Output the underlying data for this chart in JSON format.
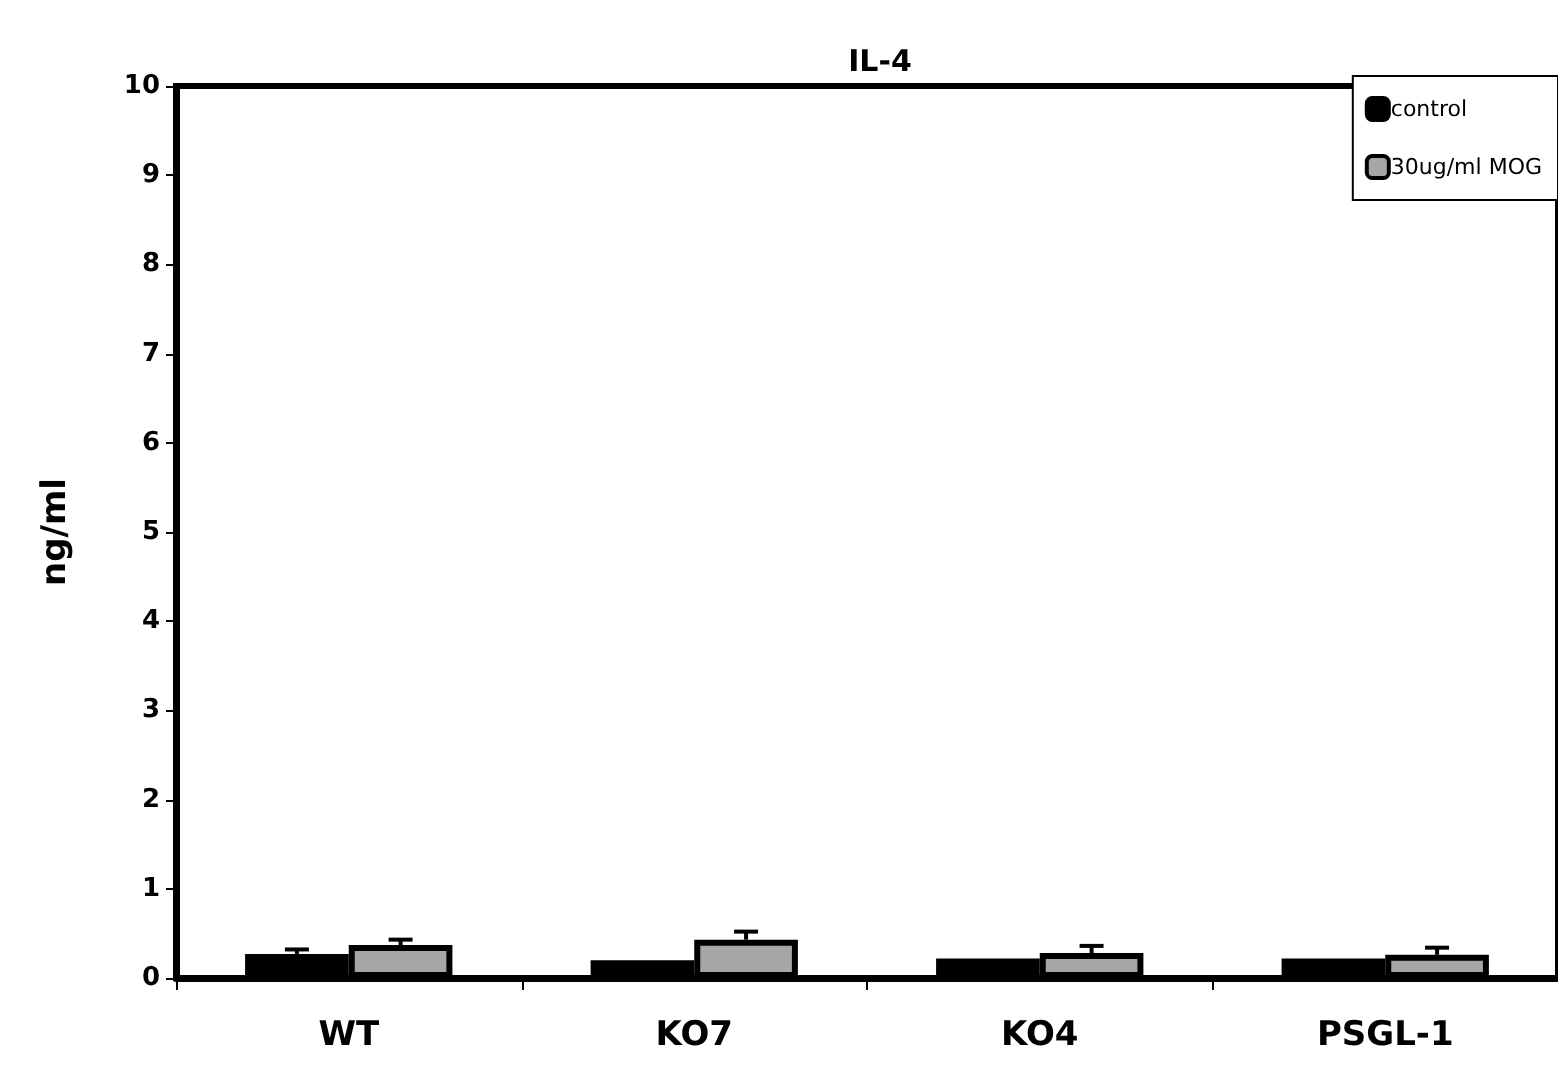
{
  "chart_data": {
    "type": "bar",
    "title": "IL-4",
    "ylabel": "ng/ml",
    "categories": [
      "WT",
      "KO7",
      "KO4",
      "PSGL-1"
    ],
    "series": [
      {
        "name": "control",
        "color": "#000000",
        "values": [
          0.27,
          0.2,
          0.22,
          0.22
        ],
        "errors": [
          [
            0.27,
            0.32
          ],
          null,
          null,
          null
        ]
      },
      {
        "name": "30ug/ml MOG",
        "color": "#a6a6a6",
        "values": [
          0.37,
          0.43,
          0.28,
          0.26
        ],
        "errors": [
          [
            0.37,
            0.43
          ],
          [
            0.43,
            0.52
          ],
          [
            0.28,
            0.36
          ],
          [
            0.26,
            0.34
          ]
        ]
      }
    ],
    "ylim": [
      0,
      10
    ],
    "yticks": [
      0,
      1,
      2,
      3,
      4,
      5,
      6,
      7,
      8,
      9,
      10
    ],
    "grid": false,
    "legend": "top right"
  }
}
